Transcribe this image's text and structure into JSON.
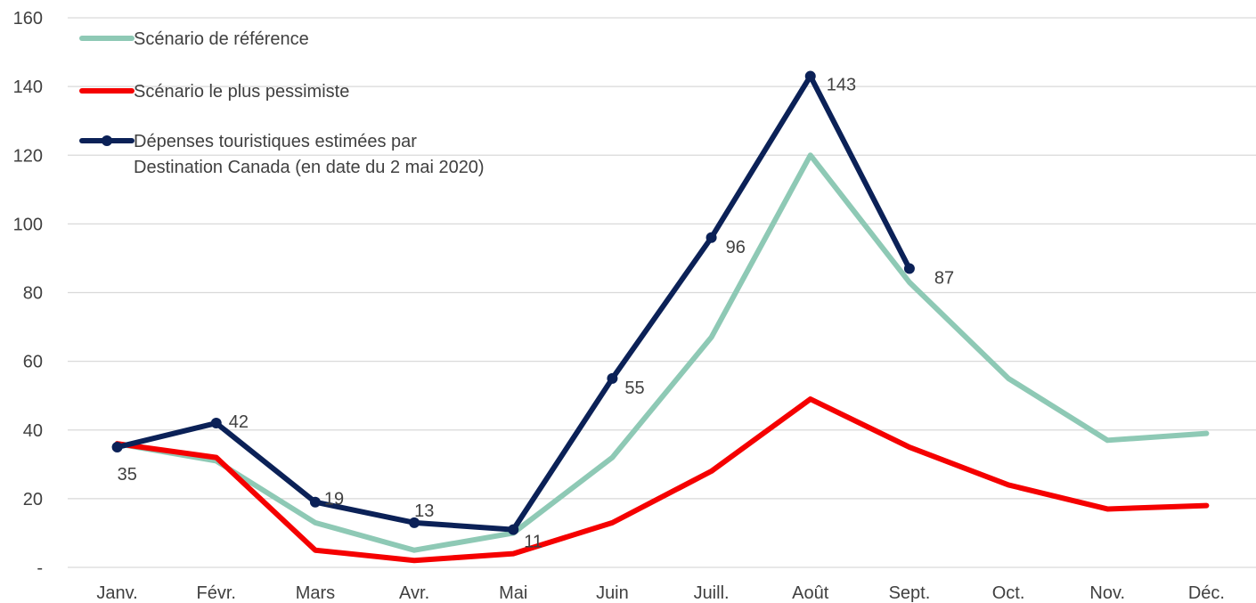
{
  "chart_data": {
    "type": "line",
    "title": "",
    "xlabel": "",
    "ylabel": "",
    "categories": [
      "Janv.",
      "Févr.",
      "Mars",
      "Avr.",
      "Mai",
      "Juin",
      "Juill.",
      "Août",
      "Sept.",
      "Oct.",
      "Nov.",
      "Déc."
    ],
    "ylim": [
      0,
      160
    ],
    "yticks": [
      0,
      20,
      40,
      60,
      80,
      100,
      120,
      140,
      160
    ],
    "ytick_labels": [
      "-",
      "20",
      "40",
      "60",
      "80",
      "100",
      "120",
      "140",
      "160"
    ],
    "grid": true,
    "legend_position": "top-left",
    "series": [
      {
        "name": "Scénario de référence",
        "color": "#8ec9b5",
        "markers": false,
        "values": [
          36,
          31,
          13,
          5,
          10,
          32,
          67,
          120,
          83,
          55,
          37,
          39
        ]
      },
      {
        "name": "Scénario le plus pessimiste",
        "color": "#f50000",
        "markers": false,
        "values": [
          36,
          32,
          5,
          2,
          4,
          13,
          28,
          49,
          35,
          24,
          17,
          18
        ]
      },
      {
        "name": "Dépenses touristiques estimées par Destination Canada (en date du 2 mai 2020)",
        "name_lines": [
          "Dépenses touristiques estimées par",
          "Destination Canada (en date du 2 mai 2020)"
        ],
        "color": "#0b2157",
        "markers": true,
        "values": [
          35,
          42,
          19,
          13,
          11,
          55,
          96,
          143,
          87,
          null,
          null,
          null
        ],
        "data_labels": [
          "35",
          "42",
          "19",
          "13",
          "11",
          "55",
          "96",
          "143",
          "87"
        ]
      }
    ]
  }
}
